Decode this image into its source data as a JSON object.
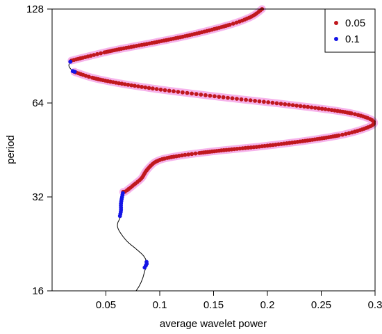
{
  "chart_data": {
    "type": "line",
    "title": "",
    "xlabel": "average wavelet power",
    "ylabel": "period",
    "xlim": [
      0.0,
      0.3
    ],
    "ylim": [
      16,
      128
    ],
    "y_scale": "log2",
    "grid": false,
    "legend_position": "top-right",
    "x_ticks": [
      0.05,
      0.1,
      0.15,
      0.2,
      0.25,
      0.3
    ],
    "x_tick_labels": [
      "0.05",
      "0.1",
      "0.15",
      "0.2",
      "0.25",
      "0.3"
    ],
    "y_ticks": [
      16,
      32,
      64,
      128
    ],
    "y_tick_labels": [
      "16",
      "32",
      "64",
      "128"
    ],
    "curve": {
      "color": "#000000",
      "points": [
        [
          0.078,
          16
        ],
        [
          0.081,
          16.6
        ],
        [
          0.084,
          17.5
        ],
        [
          0.086,
          18.5
        ],
        [
          0.088,
          19.6
        ],
        [
          0.085,
          20.7
        ],
        [
          0.078,
          21.8
        ],
        [
          0.07,
          23.0
        ],
        [
          0.064,
          24.4
        ],
        [
          0.061,
          25.5
        ],
        [
          0.061,
          26.4
        ],
        [
          0.063,
          27.4
        ],
        [
          0.064,
          29.0
        ],
        [
          0.064,
          30.5
        ],
        [
          0.065,
          32.0
        ],
        [
          0.068,
          33.3
        ],
        [
          0.076,
          35.0
        ],
        [
          0.083,
          36.7
        ],
        [
          0.087,
          38.6
        ],
        [
          0.092,
          40.4
        ],
        [
          0.097,
          41.6
        ],
        [
          0.106,
          42.6
        ],
        [
          0.125,
          43.7
        ],
        [
          0.155,
          45.0
        ],
        [
          0.195,
          46.5
        ],
        [
          0.235,
          48.4
        ],
        [
          0.268,
          50.5
        ],
        [
          0.289,
          52.8
        ],
        [
          0.299,
          55.0
        ],
        [
          0.293,
          57.3
        ],
        [
          0.27,
          60.0
        ],
        [
          0.22,
          63.2
        ],
        [
          0.155,
          67.0
        ],
        [
          0.09,
          71.5
        ],
        [
          0.045,
          76.0
        ],
        [
          0.023,
          80.0
        ],
        [
          0.016,
          83.5
        ],
        [
          0.018,
          86.5
        ],
        [
          0.032,
          90.0
        ],
        [
          0.058,
          94.5
        ],
        [
          0.095,
          100.0
        ],
        [
          0.13,
          106.0
        ],
        [
          0.165,
          114.0
        ],
        [
          0.185,
          121.0
        ],
        [
          0.195,
          128.0
        ]
      ]
    },
    "series": [
      {
        "name": "0.05",
        "color": "#c0181e",
        "glow_color": "#f4a6e8",
        "segments": [
          [
            [
              0.066,
              33.2
            ],
            [
              0.068,
              33.3
            ],
            [
              0.076,
              35.0
            ],
            [
              0.083,
              36.7
            ],
            [
              0.087,
              38.6
            ],
            [
              0.092,
              40.4
            ],
            [
              0.097,
              41.6
            ],
            [
              0.106,
              42.6
            ],
            [
              0.125,
              43.7
            ],
            [
              0.155,
              45.0
            ],
            [
              0.195,
              46.5
            ],
            [
              0.235,
              48.4
            ],
            [
              0.268,
              50.5
            ],
            [
              0.289,
              52.8
            ],
            [
              0.299,
              55.0
            ],
            [
              0.293,
              57.3
            ],
            [
              0.27,
              60.0
            ],
            [
              0.22,
              63.2
            ],
            [
              0.155,
              67.0
            ],
            [
              0.09,
              71.5
            ],
            [
              0.045,
              76.0
            ],
            [
              0.023,
              80.0
            ],
            [
              0.021,
              80.6
            ]
          ],
          [
            [
              0.018,
              87.5
            ],
            [
              0.032,
              90.0
            ],
            [
              0.058,
              94.5
            ],
            [
              0.095,
              100.0
            ],
            [
              0.13,
              106.0
            ],
            [
              0.165,
              114.0
            ],
            [
              0.185,
              121.0
            ],
            [
              0.195,
              128.0
            ]
          ]
        ]
      },
      {
        "name": "0.1",
        "color": "#1414e6",
        "segments": [
          [
            [
              0.021,
              80.6
            ],
            [
              0.019,
              81.0
            ],
            [
              0.018,
              81.3
            ]
          ],
          [
            [
              0.017,
              86.8
            ],
            [
              0.018,
              87.5
            ]
          ],
          [
            [
              0.063,
              27.8
            ],
            [
              0.064,
              29.0
            ],
            [
              0.064,
              30.5
            ],
            [
              0.065,
              32.0
            ],
            [
              0.066,
              33.2
            ]
          ],
          [
            [
              0.086,
              19.0
            ],
            [
              0.088,
              19.6
            ],
            [
              0.087,
              20.0
            ]
          ]
        ]
      }
    ],
    "legend": [
      {
        "label": "0.05",
        "color": "#c0181e"
      },
      {
        "label": "0.1",
        "color": "#1414e6"
      }
    ]
  }
}
